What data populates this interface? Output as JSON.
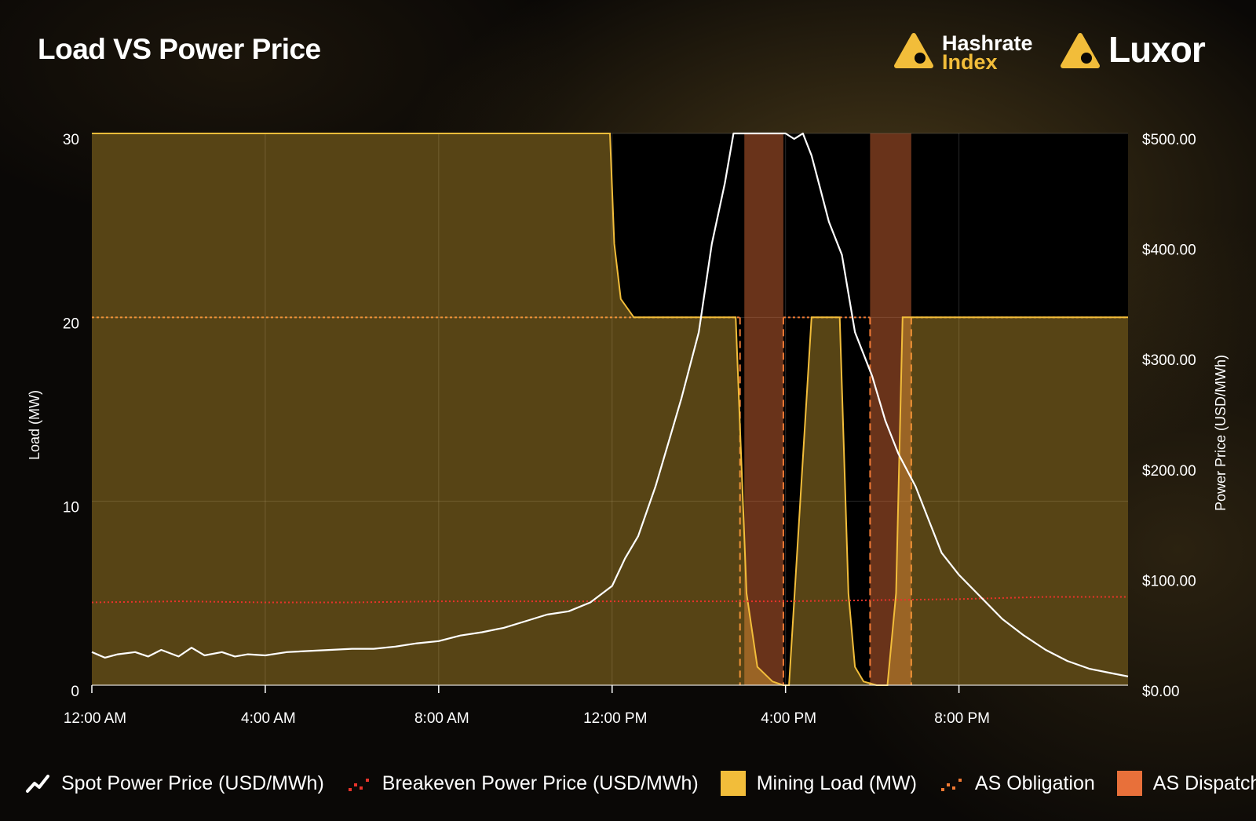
{
  "header": {
    "title": "Load VS Power Price",
    "brand1_line1": "Hashrate",
    "brand1_line2": "Index",
    "brand2": "Luxor"
  },
  "colors": {
    "spot": "#ffffff",
    "breakeven": "#e8332a",
    "mining_load": "#f2bd3a",
    "as_obligation": "#f07a34",
    "as_dispatch": "#e8703a"
  },
  "chart_data": {
    "type": "line",
    "title": "Load VS Power Price",
    "x_ticks": [
      "12:00 AM",
      "4:00 AM",
      "8:00 AM",
      "12:00 PM",
      "4:00 PM",
      "8:00 PM"
    ],
    "x_tick_hours": [
      0,
      4,
      8,
      12,
      16,
      20
    ],
    "x_range_hours": [
      0,
      23.9
    ],
    "y_left": {
      "label": "Load (MW)",
      "ticks": [
        "0",
        "10",
        "20",
        "30"
      ],
      "range": [
        0,
        30
      ]
    },
    "y_right": {
      "label": "Power Price (USD/MWh)",
      "ticks": [
        "$0.00",
        "$100.00",
        "$200.00",
        "$300.00",
        "$400.00",
        "$500.00"
      ],
      "range": [
        0,
        500
      ]
    },
    "grid": true,
    "legend_position": "bottom",
    "series": [
      {
        "name": "Spot Power Price (USD/MWh)",
        "axis": "right",
        "x_hours": [
          0,
          0.3,
          0.6,
          1,
          1.3,
          1.6,
          2,
          2.3,
          2.6,
          3,
          3.3,
          3.6,
          4,
          4.5,
          5,
          5.5,
          6,
          6.5,
          7,
          7.5,
          8,
          8.5,
          9,
          9.5,
          10,
          10.5,
          11,
          11.5,
          12,
          12.3,
          12.6,
          13,
          13.3,
          13.6,
          14,
          14.3,
          14.6,
          14.8,
          15,
          15.2,
          15.4,
          15.6,
          15.8,
          16,
          16.2,
          16.4,
          16.6,
          16.8,
          17,
          17.3,
          17.6,
          18,
          18.3,
          18.6,
          19,
          19.3,
          19.6,
          20,
          20.5,
          21,
          21.5,
          22,
          22.5,
          23,
          23.5,
          23.9
        ],
        "values": [
          30,
          25,
          28,
          30,
          26,
          32,
          26,
          34,
          27,
          30,
          26,
          28,
          27,
          30,
          31,
          32,
          33,
          33,
          35,
          38,
          40,
          45,
          48,
          52,
          58,
          64,
          67,
          75,
          90,
          115,
          135,
          180,
          220,
          260,
          320,
          400,
          455,
          500,
          500,
          500,
          500,
          500,
          500,
          500,
          495,
          500,
          480,
          450,
          420,
          390,
          320,
          280,
          240,
          210,
          180,
          150,
          120,
          100,
          80,
          60,
          45,
          32,
          22,
          15,
          11,
          8
        ]
      },
      {
        "name": "Breakeven Power Price (USD/MWh)",
        "axis": "right",
        "x_hours": [
          0,
          2,
          4,
          6,
          8,
          10,
          12,
          14,
          16,
          18,
          20,
          22,
          23.9
        ],
        "values": [
          75,
          76,
          75,
          75,
          76,
          76,
          76,
          76,
          76,
          77,
          78,
          80,
          80
        ]
      },
      {
        "name": "Mining Load (MW)",
        "axis": "left",
        "x_hours": [
          0,
          11.9,
          11.95,
          12.05,
          12.2,
          12.5,
          14.7,
          14.85,
          15.1,
          15.35,
          15.7,
          15.95,
          16.08,
          16.6,
          16.65,
          17.2,
          17.25,
          17.45,
          17.6,
          17.8,
          18.1,
          18.35,
          18.55,
          18.7,
          23.9
        ],
        "values": [
          30,
          30,
          30,
          24,
          21,
          20,
          20,
          20,
          5,
          1,
          0.2,
          0,
          0,
          20,
          20,
          20,
          20,
          5,
          1,
          0.2,
          0,
          0,
          5,
          20,
          20
        ]
      }
    ],
    "as_obligation_windows_hours": [
      [
        14.95,
        15.95
      ],
      [
        17.95,
        18.9
      ]
    ],
    "as_obligation_level": 20,
    "as_dispatch_windows_hours": [
      [
        15.05,
        15.95
      ],
      [
        17.95,
        18.9
      ]
    ]
  },
  "legend": [
    {
      "label": "Spot Power Price (USD/MWh)",
      "icon": "line-chart-icon"
    },
    {
      "label": "Breakeven Power Price (USD/MWh)",
      "icon": "dotted-line-icon"
    },
    {
      "label": "Mining Load (MW)",
      "icon": "filled-square-icon"
    },
    {
      "label": "AS Obligation",
      "icon": "dashed-line-icon"
    },
    {
      "label": "AS Dispatch",
      "icon": "filled-square-icon"
    }
  ]
}
